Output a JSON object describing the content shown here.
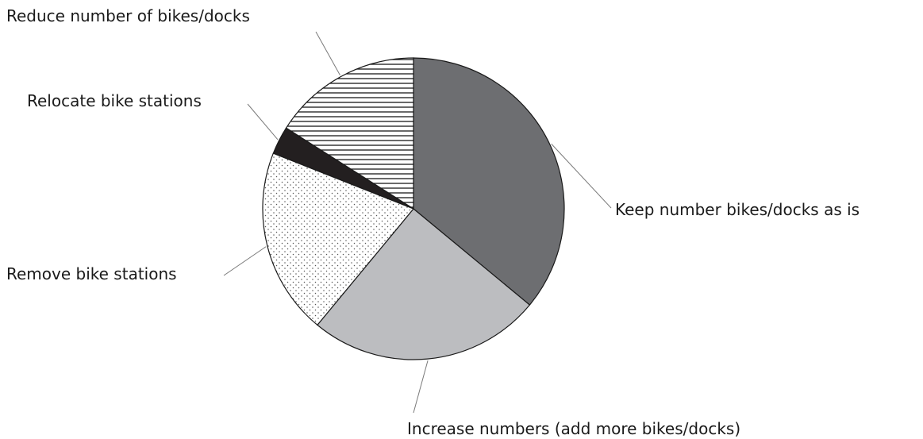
{
  "chart_data": {
    "type": "pie",
    "start_angle_deg": 0,
    "direction": "clockwise",
    "legend": "none (direct labels with leader lines)",
    "slices": [
      {
        "label": "Keep number bikes/docks as is",
        "value": 36,
        "color": "#6d6e71",
        "pattern": "solid"
      },
      {
        "label": "Increase numbers (add more bikes/docks)",
        "value": 25,
        "color": "#bcbdc0",
        "pattern": "solid"
      },
      {
        "label": "Remove bike stations",
        "value": 20,
        "color": "#ffffff",
        "pattern": "dots"
      },
      {
        "label": "Relocate bike stations",
        "value": 3,
        "color": "#231f20",
        "pattern": "solid"
      },
      {
        "label": "Reduce number of bikes/docks",
        "value": 16,
        "color": "#ffffff",
        "pattern": "horizontal-lines"
      }
    ]
  }
}
